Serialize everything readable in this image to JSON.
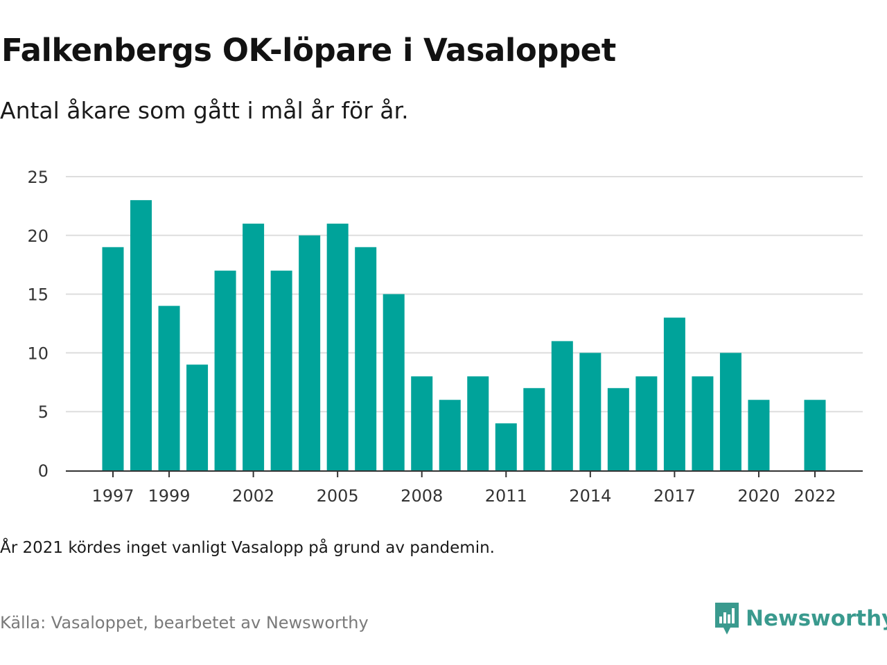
{
  "header": {
    "title": "Falkenbergs OK-löpare i Vasaloppet",
    "subtitle": "Antal åkare som gått i mål år för år."
  },
  "footer": {
    "note": "År 2021 kördes inget vanligt Vasalopp på grund av pandemin.",
    "source": "Källa: Vasaloppet, bearbetet av Newsworthy",
    "brand": "Newsworthy",
    "brand_icon": "newsworthy-logo-icon"
  },
  "colors": {
    "bar": "#00a39a",
    "grid": "#dddddd",
    "axis": "#333333",
    "brand": "#3a9a8e"
  },
  "chart_data": {
    "type": "bar",
    "title": "Falkenbergs OK-löpare i Vasaloppet",
    "subtitle": "Antal åkare som gått i mål år för år.",
    "xlabel": "",
    "ylabel": "",
    "ylim": [
      0,
      25
    ],
    "yticks": [
      0,
      5,
      10,
      15,
      20,
      25
    ],
    "grid": true,
    "legend": "none",
    "categories": [
      1997,
      1998,
      1999,
      2000,
      2001,
      2002,
      2003,
      2004,
      2005,
      2006,
      2007,
      2008,
      2009,
      2010,
      2011,
      2012,
      2013,
      2014,
      2015,
      2016,
      2017,
      2018,
      2019,
      2020,
      2021,
      2022
    ],
    "values": [
      19,
      23,
      14,
      9,
      17,
      21,
      17,
      20,
      21,
      19,
      15,
      8,
      6,
      8,
      4,
      7,
      11,
      10,
      7,
      8,
      13,
      8,
      10,
      6,
      null,
      6
    ],
    "xtick_labels": [
      1997,
      1999,
      2002,
      2005,
      2008,
      2011,
      2014,
      2017,
      2020,
      2022
    ]
  }
}
